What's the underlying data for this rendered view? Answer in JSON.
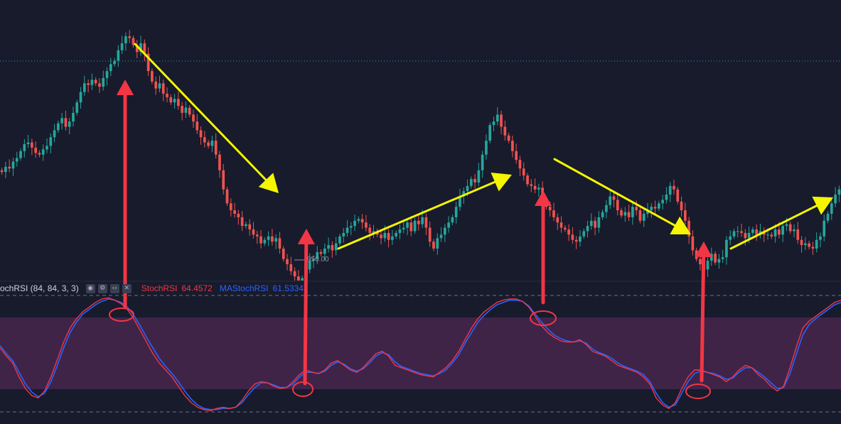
{
  "indicator": {
    "name": "ochRSI (84, 84, 3, 3)",
    "k_label": "StochRSI",
    "k_value": "64.4572",
    "d_label": "MAStochRSI",
    "d_value": "61.5334",
    "buttons": [
      "eye-icon",
      "gear-icon",
      "code-icon",
      "close-icon"
    ]
  },
  "price_marker": "950.00",
  "colors": {
    "background": "#171b2c",
    "up_candle": "#26a69a",
    "down_candle": "#ef5350",
    "k_line": "#f23645",
    "d_line": "#2962ff",
    "band_fill": "#3f2448",
    "arrow_yellow": "#f5f500",
    "arrow_red": "#f23645"
  },
  "chart_data": {
    "type": "candlestick",
    "price_closes": [
      4,
      7,
      6,
      10,
      12,
      16,
      20,
      21,
      18,
      15,
      14,
      17,
      19,
      24,
      28,
      32,
      35,
      30,
      33,
      38,
      44,
      50,
      55,
      54,
      57,
      55,
      53,
      58,
      62,
      66,
      68,
      74,
      78,
      82,
      81,
      77,
      73,
      78,
      72,
      62,
      56,
      52,
      55,
      49,
      47,
      44,
      46,
      42,
      38,
      41,
      37,
      33,
      28,
      24,
      21,
      19,
      22,
      14,
      5,
      -6,
      -14,
      -18,
      -20,
      -22,
      -27,
      -26,
      -29,
      -32,
      -33,
      -37,
      -35,
      -33,
      -36,
      -34,
      -40,
      -46,
      -49,
      -53,
      -56,
      -62,
      -57,
      -52,
      -47,
      -46,
      -42,
      -43,
      -40,
      -38,
      -41,
      -37,
      -33,
      -31,
      -28,
      -27,
      -24,
      -23,
      -25,
      -28,
      -31,
      -30,
      -32,
      -34,
      -31,
      -35,
      -33,
      -31,
      -29,
      -28,
      -25,
      -30,
      -24,
      -26,
      -22,
      -28,
      -36,
      -40,
      -34,
      -32,
      -28,
      -25,
      -22,
      -16,
      -10,
      -7,
      -4,
      0,
      -2,
      5,
      14,
      22,
      31,
      33,
      37,
      30,
      25,
      22,
      16,
      11,
      6,
      2,
      -3,
      -4,
      -6,
      -5,
      -12,
      -16,
      -18,
      -22,
      -25,
      -28,
      -29,
      -32,
      -35,
      -36,
      -33,
      -30,
      -27,
      -24,
      -28,
      -22,
      -19,
      -15,
      -10,
      -12,
      -18,
      -21,
      -19,
      -22,
      -16,
      -18,
      -24,
      -20,
      -18,
      -16,
      -17,
      -14,
      -12,
      -9,
      -4,
      -6,
      -13,
      -18,
      -24,
      -33,
      -41,
      -46,
      -49,
      -52,
      -47,
      -43,
      -48,
      -46,
      -45,
      -35,
      -33,
      -30,
      -30,
      -31,
      -34,
      -31,
      -29,
      -32,
      -30,
      -32,
      -32,
      -33,
      -29,
      -32,
      -27,
      -26,
      -30,
      -29,
      -35,
      -38,
      -37,
      -39,
      -40,
      -35,
      -33,
      -24,
      -20,
      -14,
      -9,
      -6
    ],
    "stoch_k": [
      55,
      48,
      42,
      30,
      20,
      14,
      12,
      18,
      30,
      45,
      60,
      72,
      80,
      86,
      90,
      94,
      97,
      98,
      96,
      93,
      88,
      80,
      70,
      60,
      50,
      42,
      36,
      30,
      22,
      14,
      8,
      4,
      2,
      1,
      3,
      4,
      3,
      4,
      10,
      18,
      24,
      26,
      25,
      22,
      20,
      21,
      26,
      32,
      36,
      34,
      33,
      36,
      42,
      44,
      40,
      36,
      34,
      38,
      44,
      50,
      52,
      48,
      40,
      38,
      36,
      34,
      32,
      31,
      30,
      34,
      38,
      44,
      52,
      62,
      72,
      80,
      86,
      90,
      94,
      96,
      97,
      97,
      95,
      90,
      82,
      74,
      68,
      64,
      61,
      60,
      60,
      62,
      58,
      52,
      50,
      48,
      44,
      40,
      38,
      36,
      34,
      30,
      24,
      12,
      6,
      3,
      8,
      20,
      30,
      36,
      36,
      34,
      32,
      30,
      26,
      30,
      36,
      40,
      38,
      32,
      28,
      22,
      18,
      22,
      38,
      56,
      72,
      78,
      82,
      86,
      90,
      94,
      96
    ],
    "stoch_d": [
      57,
      50,
      44,
      34,
      24,
      17,
      13,
      16,
      26,
      40,
      55,
      68,
      77,
      84,
      88,
      92,
      95,
      97,
      96,
      94,
      90,
      83,
      74,
      64,
      55,
      46,
      39,
      33,
      26,
      18,
      11,
      6,
      3,
      2,
      2,
      3,
      3,
      4,
      8,
      15,
      21,
      25,
      25,
      23,
      21,
      21,
      24,
      30,
      34,
      34,
      33,
      35,
      40,
      43,
      41,
      37,
      35,
      37,
      42,
      48,
      51,
      49,
      43,
      39,
      37,
      35,
      33,
      32,
      31,
      33,
      36,
      42,
      49,
      59,
      68,
      77,
      83,
      88,
      92,
      94,
      96,
      96,
      95,
      91,
      84,
      77,
      71,
      66,
      63,
      61,
      60,
      61,
      59,
      54,
      51,
      49,
      46,
      42,
      39,
      37,
      35,
      32,
      26,
      16,
      8,
      4,
      6,
      16,
      26,
      33,
      35,
      34,
      33,
      31,
      28,
      29,
      34,
      38,
      38,
      34,
      30,
      25,
      20,
      21,
      33,
      50,
      66,
      75,
      80,
      84,
      88,
      92,
      94
    ],
    "stoch_ylim": [
      0,
      100
    ],
    "stoch_levels": [
      20,
      80
    ],
    "stoch_bounds": [
      0,
      100
    ]
  }
}
